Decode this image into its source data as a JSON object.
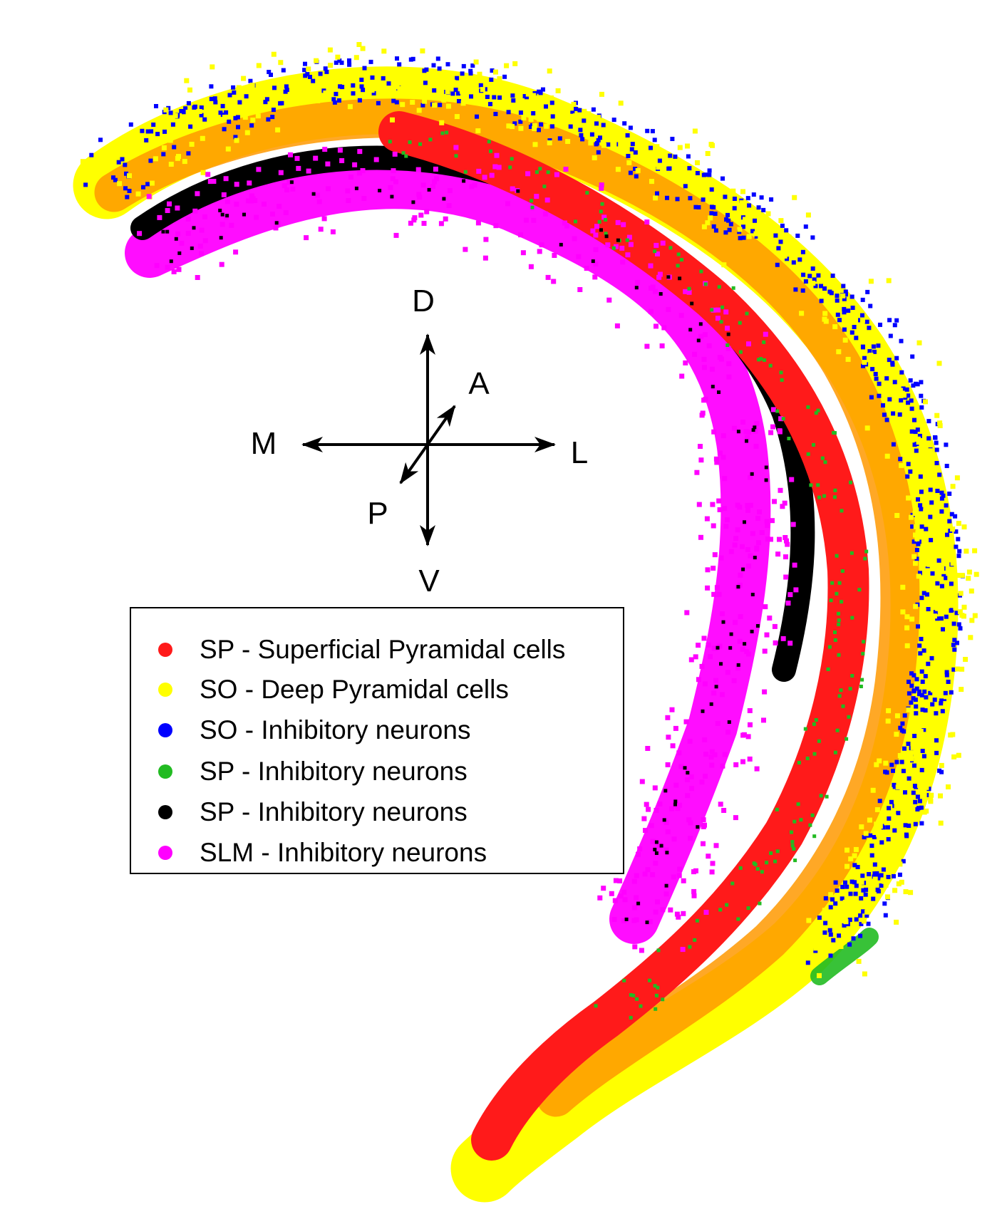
{
  "orientation": {
    "dorsal": "D",
    "ventral": "V",
    "medial": "M",
    "lateral": "L",
    "anterior": "A",
    "posterior": "P"
  },
  "legend": {
    "items": [
      {
        "label": "SP - Superficial Pyramidal cells",
        "color": "#ff1a1a"
      },
      {
        "label": "SO - Deep Pyramidal cells",
        "color": "#ffff00"
      },
      {
        "label": "SO - Inhibitory neurons",
        "color": "#0000ff"
      },
      {
        "label": "SP - Inhibitory neurons",
        "color": "#22bb22"
      },
      {
        "label": "SP - Inhibitory neurons",
        "color": "#000000"
      },
      {
        "label": "SLM - Inhibitory neurons",
        "color": "#ff00ff"
      }
    ]
  },
  "colors": {
    "superficial_pyramidal": "#ff1a1a",
    "deep_pyramidal": "#ffff00",
    "orange_overlap": "#ff9900",
    "so_inhibitory": "#0000ff",
    "sp_inhibitory_green": "#22bb22",
    "sp_inhibitory_black": "#000000",
    "slm_inhibitory": "#ff00ff"
  }
}
